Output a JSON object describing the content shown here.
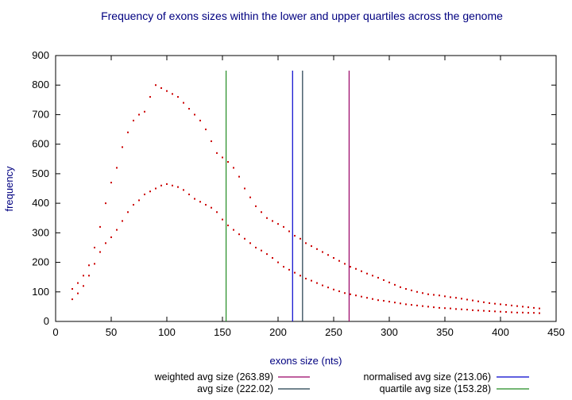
{
  "chart_data": {
    "type": "scatter",
    "title": "Frequency of exons sizes within the lower and upper quartiles across the genome",
    "xlabel": "exons size (nts)",
    "ylabel": "frequency",
    "xlim": [
      0,
      450
    ],
    "ylim": [
      0,
      900
    ],
    "xticks": [
      0,
      50,
      100,
      150,
      200,
      250,
      300,
      350,
      400,
      450
    ],
    "yticks": [
      0,
      100,
      200,
      300,
      400,
      500,
      600,
      700,
      800,
      900
    ],
    "grid": false,
    "legend_position": "bottom",
    "series": [
      {
        "style": "points",
        "color": "#cc0000",
        "x": [
          15,
          20,
          25,
          30,
          35,
          40,
          45,
          50,
          55,
          60,
          65,
          70,
          75,
          80,
          85,
          90,
          95,
          100,
          105,
          110,
          115,
          120,
          125,
          130,
          135,
          140,
          145,
          150,
          155,
          160,
          165,
          170,
          175,
          180,
          185,
          190,
          195,
          200,
          205,
          210,
          215,
          220,
          225,
          230,
          235,
          240,
          245,
          250,
          255,
          260,
          265,
          270,
          275,
          280,
          285,
          290,
          295,
          300,
          305,
          310,
          315,
          320,
          325,
          330,
          335,
          340,
          345,
          350,
          355,
          360,
          365,
          370,
          375,
          380,
          385,
          390,
          395,
          400,
          405,
          410,
          415,
          420,
          425,
          430,
          435
        ],
        "y": [
          110,
          130,
          155,
          190,
          250,
          320,
          400,
          470,
          520,
          590,
          640,
          680,
          700,
          710,
          760,
          800,
          790,
          780,
          770,
          760,
          740,
          720,
          700,
          680,
          650,
          610,
          570,
          555,
          540,
          520,
          490,
          450,
          420,
          390,
          370,
          350,
          340,
          330,
          320,
          305,
          290,
          280,
          265,
          255,
          245,
          235,
          225,
          215,
          205,
          195,
          185,
          178,
          170,
          162,
          155,
          148,
          140,
          132,
          124,
          116,
          110,
          105,
          100,
          96,
          92,
          90,
          88,
          85,
          82,
          80,
          77,
          74,
          71,
          68,
          65,
          62,
          60,
          58,
          56,
          54,
          52,
          50,
          48,
          46,
          44
        ]
      },
      {
        "style": "points",
        "color": "#cc0000",
        "x": [
          15,
          20,
          25,
          30,
          35,
          40,
          45,
          50,
          55,
          60,
          65,
          70,
          75,
          80,
          85,
          90,
          95,
          100,
          105,
          110,
          115,
          120,
          125,
          130,
          135,
          140,
          145,
          150,
          155,
          160,
          165,
          170,
          175,
          180,
          185,
          190,
          195,
          200,
          205,
          210,
          215,
          220,
          225,
          230,
          235,
          240,
          245,
          250,
          255,
          260,
          265,
          270,
          275,
          280,
          285,
          290,
          295,
          300,
          305,
          310,
          315,
          320,
          325,
          330,
          335,
          340,
          345,
          350,
          355,
          360,
          365,
          370,
          375,
          380,
          385,
          390,
          395,
          400,
          405,
          410,
          415,
          420,
          425,
          430,
          435
        ],
        "y": [
          75,
          95,
          120,
          155,
          195,
          235,
          265,
          285,
          310,
          340,
          370,
          395,
          410,
          430,
          440,
          450,
          460,
          465,
          460,
          455,
          445,
          430,
          415,
          405,
          395,
          385,
          370,
          345,
          325,
          310,
          295,
          280,
          265,
          250,
          240,
          228,
          215,
          200,
          185,
          175,
          165,
          155,
          145,
          138,
          130,
          122,
          115,
          108,
          102,
          96,
          92,
          88,
          84,
          80,
          76,
          72,
          70,
          67,
          64,
          61,
          58,
          56,
          54,
          52,
          50,
          48,
          46,
          45,
          44,
          42,
          41,
          40,
          38,
          37,
          36,
          35,
          34,
          33,
          32,
          31,
          30,
          30,
          29,
          29,
          28
        ]
      }
    ],
    "vertical_lines": [
      {
        "x": 263.89,
        "color": "#990066"
      },
      {
        "x": 222.02,
        "color": "#1f3a4a"
      },
      {
        "x": 213.06,
        "color": "#0000cc"
      },
      {
        "x": 153.28,
        "color": "#228b22"
      }
    ],
    "legend": [
      {
        "label": "weighted avg size (263.89)",
        "color": "#990066"
      },
      {
        "label": "normalised avg size (213.06)",
        "color": "#0000cc"
      },
      {
        "label": "avg size (222.02)",
        "color": "#1f3a4a"
      },
      {
        "label": "quartile avg size (153.28)",
        "color": "#228b22"
      }
    ]
  }
}
